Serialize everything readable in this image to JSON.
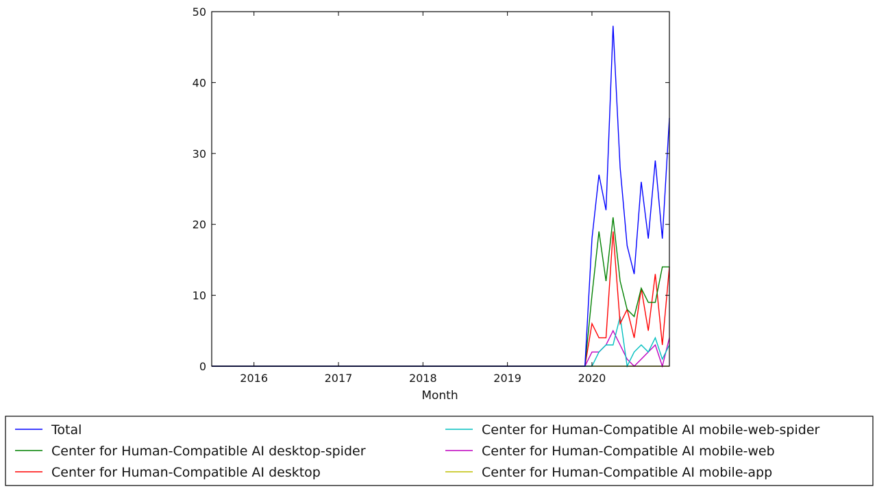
{
  "chart_data": {
    "type": "line",
    "title": "",
    "xlabel": "Month",
    "ylabel": "",
    "ylim": [
      0,
      50
    ],
    "xlim": [
      "2015-07",
      "2020-12"
    ],
    "yticks": [
      "0",
      "10",
      "20",
      "30",
      "40",
      "50"
    ],
    "xticks": [
      {
        "label": "2016",
        "date": "2016-01"
      },
      {
        "label": "2017",
        "date": "2017-01"
      },
      {
        "label": "2018",
        "date": "2018-01"
      },
      {
        "label": "2019",
        "date": "2019-01"
      },
      {
        "label": "2020",
        "date": "2020-01"
      }
    ],
    "grid": false,
    "legend_placement": "below",
    "x": [
      "2015-07",
      "2015-08",
      "2015-09",
      "2015-10",
      "2015-11",
      "2015-12",
      "2016-01",
      "2016-02",
      "2016-03",
      "2016-04",
      "2016-05",
      "2016-06",
      "2016-07",
      "2016-08",
      "2016-09",
      "2016-10",
      "2016-11",
      "2016-12",
      "2017-01",
      "2017-02",
      "2017-03",
      "2017-04",
      "2017-05",
      "2017-06",
      "2017-07",
      "2017-08",
      "2017-09",
      "2017-10",
      "2017-11",
      "2017-12",
      "2018-01",
      "2018-02",
      "2018-03",
      "2018-04",
      "2018-05",
      "2018-06",
      "2018-07",
      "2018-08",
      "2018-09",
      "2018-10",
      "2018-11",
      "2018-12",
      "2019-01",
      "2019-02",
      "2019-03",
      "2019-04",
      "2019-05",
      "2019-06",
      "2019-07",
      "2019-08",
      "2019-09",
      "2019-10",
      "2019-11",
      "2019-12",
      "2020-01",
      "2020-02",
      "2020-03",
      "2020-04",
      "2020-05",
      "2020-06",
      "2020-07",
      "2020-08",
      "2020-09",
      "2020-10",
      "2020-11",
      "2020-12"
    ],
    "series": [
      {
        "name": "Total",
        "color": "#0000ff",
        "values": [
          0,
          0,
          0,
          0,
          0,
          0,
          0,
          0,
          0,
          0,
          0,
          0,
          0,
          0,
          0,
          0,
          0,
          0,
          0,
          0,
          0,
          0,
          0,
          0,
          0,
          0,
          0,
          0,
          0,
          0,
          0,
          0,
          0,
          0,
          0,
          0,
          0,
          0,
          0,
          0,
          0,
          0,
          0,
          0,
          0,
          0,
          0,
          0,
          0,
          0,
          0,
          0,
          0,
          0,
          18,
          27,
          22,
          48,
          28,
          17,
          13,
          26,
          18,
          29,
          18,
          35
        ]
      },
      {
        "name": "Center for Human-Compatible AI desktop-spider",
        "color": "#008000",
        "values": [
          0,
          0,
          0,
          0,
          0,
          0,
          0,
          0,
          0,
          0,
          0,
          0,
          0,
          0,
          0,
          0,
          0,
          0,
          0,
          0,
          0,
          0,
          0,
          0,
          0,
          0,
          0,
          0,
          0,
          0,
          0,
          0,
          0,
          0,
          0,
          0,
          0,
          0,
          0,
          0,
          0,
          0,
          0,
          0,
          0,
          0,
          0,
          0,
          0,
          0,
          0,
          0,
          0,
          0,
          10,
          19,
          12,
          21,
          12,
          8,
          7,
          11,
          9,
          9,
          14,
          14
        ]
      },
      {
        "name": "Center for Human-Compatible AI desktop",
        "color": "#ff0000",
        "values": [
          0,
          0,
          0,
          0,
          0,
          0,
          0,
          0,
          0,
          0,
          0,
          0,
          0,
          0,
          0,
          0,
          0,
          0,
          0,
          0,
          0,
          0,
          0,
          0,
          0,
          0,
          0,
          0,
          0,
          0,
          0,
          0,
          0,
          0,
          0,
          0,
          0,
          0,
          0,
          0,
          0,
          0,
          0,
          0,
          0,
          0,
          0,
          0,
          0,
          0,
          0,
          0,
          0,
          0,
          6,
          4,
          4,
          19,
          6,
          8,
          4,
          11,
          5,
          13,
          3,
          14
        ]
      },
      {
        "name": "Center for Human-Compatible AI mobile-web-spider",
        "color": "#00bfbf",
        "values": [
          0,
          0,
          0,
          0,
          0,
          0,
          0,
          0,
          0,
          0,
          0,
          0,
          0,
          0,
          0,
          0,
          0,
          0,
          0,
          0,
          0,
          0,
          0,
          0,
          0,
          0,
          0,
          0,
          0,
          0,
          0,
          0,
          0,
          0,
          0,
          0,
          0,
          0,
          0,
          0,
          0,
          0,
          0,
          0,
          0,
          0,
          0,
          0,
          0,
          0,
          0,
          0,
          0,
          0,
          0,
          2,
          3,
          3,
          7,
          0,
          2,
          3,
          2,
          4,
          1,
          3
        ]
      },
      {
        "name": "Center for Human-Compatible AI mobile-web",
        "color": "#bf00bf",
        "values": [
          0,
          0,
          0,
          0,
          0,
          0,
          0,
          0,
          0,
          0,
          0,
          0,
          0,
          0,
          0,
          0,
          0,
          0,
          0,
          0,
          0,
          0,
          0,
          0,
          0,
          0,
          0,
          0,
          0,
          0,
          0,
          0,
          0,
          0,
          0,
          0,
          0,
          0,
          0,
          0,
          0,
          0,
          0,
          0,
          0,
          0,
          0,
          0,
          0,
          0,
          0,
          0,
          0,
          0,
          2,
          2,
          3,
          5,
          3,
          1,
          0,
          1,
          2,
          3,
          0,
          4
        ]
      },
      {
        "name": "Center for Human-Compatible AI mobile-app",
        "color": "#bfbf00",
        "values": [
          0,
          0,
          0,
          0,
          0,
          0,
          0,
          0,
          0,
          0,
          0,
          0,
          0,
          0,
          0,
          0,
          0,
          0,
          0,
          0,
          0,
          0,
          0,
          0,
          0,
          0,
          0,
          0,
          0,
          0,
          0,
          0,
          0,
          0,
          0,
          0,
          0,
          0,
          0,
          0,
          0,
          0,
          0,
          0,
          0,
          0,
          0,
          0,
          0,
          0,
          0,
          0,
          0,
          0,
          0,
          0,
          0,
          0,
          0,
          0,
          0,
          0,
          0,
          0,
          0,
          0
        ]
      }
    ]
  }
}
